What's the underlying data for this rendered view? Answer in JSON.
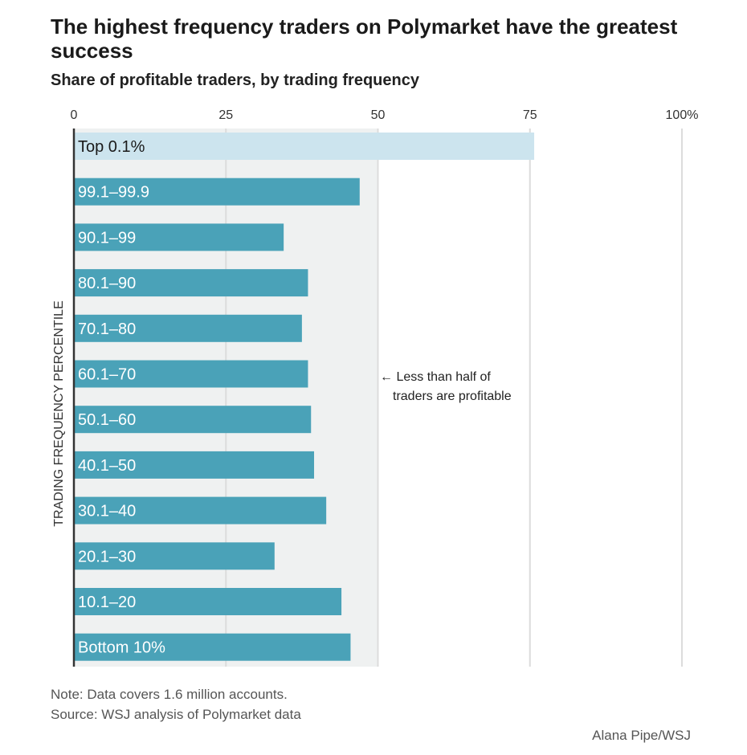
{
  "chart_data": {
    "type": "bar",
    "orientation": "horizontal",
    "title": "The highest frequency traders on Polymarket have the greatest success",
    "subtitle": "Share of profitable traders, by trading frequency",
    "ylabel": "TRADING FREQUENCY PERCENTILE",
    "xlim": [
      0,
      100
    ],
    "x_ticks": [
      "0",
      "25",
      "50",
      "75",
      "100%"
    ],
    "x_tick_values": [
      0,
      25,
      50,
      75,
      100
    ],
    "categories": [
      "Top 0.1%",
      "99.1–99.9",
      "90.1–99",
      "80.1–90",
      "70.1–80",
      "60.1–70",
      "50.1–60",
      "40.1–50",
      "30.1–40",
      "20.1–30",
      "10.1–20",
      "Bottom 10%"
    ],
    "values": [
      75.7,
      47,
      34.5,
      38.5,
      37.5,
      38.5,
      39,
      39.5,
      41.5,
      33,
      44,
      45.5
    ],
    "highlight_index": 0,
    "shaded_region": [
      0,
      50
    ],
    "annotation": {
      "line1": "Less than half of",
      "line2": "traders are profitable",
      "arrow": "←"
    },
    "grid": true,
    "colors": {
      "bar": "#4aa2b8",
      "highlight_bar": "#cce4ee",
      "shaded_region": "#eff1f1",
      "gridline": "#dcdcdc",
      "axis": "#333333"
    }
  },
  "footer": {
    "note": "Note: Data covers 1.6 million accounts.",
    "source": "Source: WSJ analysis of Polymarket data",
    "credit": "Alana Pipe/WSJ"
  }
}
